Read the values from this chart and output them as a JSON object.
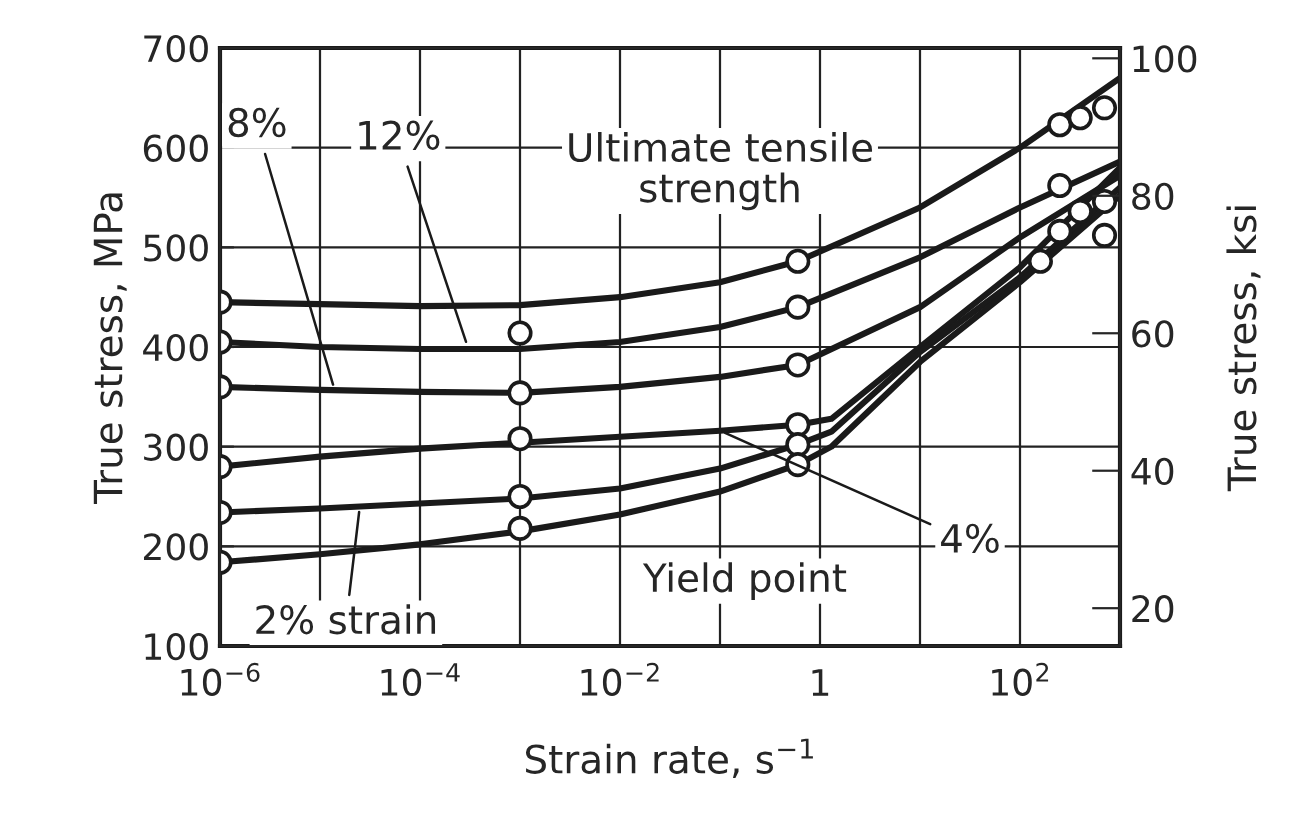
{
  "chart_data": {
    "type": "line",
    "xlabel": "Strain rate, s$^{−1}$",
    "ylabel": "True stress, MPa",
    "y2label": "True stress, ksi",
    "log": "x",
    "xlim": [
      1e-06,
      1000
    ],
    "xticks": [
      {
        "value": 1e-06,
        "label": "10$^{−6}$"
      },
      {
        "value": 1e-05,
        "label": null
      },
      {
        "value": 0.0001,
        "label": "10$^{−4}$"
      },
      {
        "value": 0.001,
        "label": null
      },
      {
        "value": 0.01,
        "label": "10$^{−2}$"
      },
      {
        "value": 0.1,
        "label": null
      },
      {
        "value": 1,
        "label": "1"
      },
      {
        "value": 10,
        "label": null
      },
      {
        "value": 100,
        "label": "10$^{2}$"
      }
    ],
    "ylim": [
      100,
      700
    ],
    "yticks": [
      100,
      200,
      300,
      400,
      500,
      600,
      700
    ],
    "y2lim": [
      14.5,
      101.5
    ],
    "y2ticks": [
      20,
      40,
      60,
      80,
      100
    ],
    "grid": true,
    "marker": "none",
    "line_style": "solid",
    "series": [
      {
        "color": "#1a1a1a",
        "x": [
          1e-06,
          1e-05,
          0.0001,
          0.001,
          0.01,
          0.1,
          0.6,
          10,
          100,
          1000
        ],
        "values": [
          445,
          443,
          441,
          442,
          450,
          465,
          486,
          540,
          600,
          670
        ]
      },
      {
        "color": "#1a1a1a",
        "x": [
          1e-06,
          1e-05,
          0.0001,
          0.001,
          0.01,
          0.1,
          0.6,
          10,
          100,
          1000
        ],
        "values": [
          405,
          400,
          398,
          398,
          405,
          420,
          440,
          490,
          540,
          586
        ]
      },
      {
        "color": "#1a1a1a",
        "x": [
          1e-06,
          1e-05,
          0.0001,
          0.001,
          0.01,
          0.1,
          0.6,
          10,
          100,
          1000
        ],
        "values": [
          360,
          357,
          355,
          354,
          360,
          370,
          382,
          440,
          510,
          572
        ]
      },
      {
        "color": "#1a1a1a",
        "x": [
          1e-06,
          1e-05,
          0.0001,
          0.001,
          0.01,
          0.1,
          0.6,
          1.3,
          10,
          100,
          1000
        ],
        "values": [
          280,
          290,
          298,
          304,
          310,
          316,
          322,
          328,
          400,
          480,
          580
        ]
      },
      {
        "color": "#1a1a1a",
        "x": [
          1e-06,
          1e-05,
          0.0001,
          0.001,
          0.01,
          0.1,
          0.6,
          1.3,
          10,
          100,
          1000
        ],
        "values": [
          234,
          238,
          243,
          248,
          258,
          278,
          302,
          315,
          395,
          470,
          560
        ]
      },
      {
        "color": "#1a1a1a",
        "x": [
          1e-06,
          1e-05,
          0.0001,
          0.001,
          0.01,
          0.1,
          0.6,
          1.3,
          10,
          100,
          1000
        ],
        "values": [
          184,
          192,
          202,
          215,
          232,
          255,
          282,
          300,
          385,
          465,
          552
        ]
      },
      {
        "type": "scatter",
        "color": "#1a1a1a",
        "marker": "circle",
        "x": [
          1e-06,
          1e-06,
          1e-06,
          1e-06,
          1e-06,
          1e-06,
          0.001,
          0.001,
          0.001,
          0.001,
          0.001,
          0.6,
          0.6,
          0.6,
          0.6,
          0.6,
          0.6,
          250,
          400,
          700,
          250,
          400,
          700,
          250,
          700,
          160
        ],
        "values": [
          445,
          405,
          360,
          280,
          234,
          184,
          414,
          354,
          308,
          250,
          218,
          486,
          440,
          382,
          322,
          302,
          282,
          623,
          630,
          640,
          562,
          536,
          546,
          516,
          512,
          486
        ]
      }
    ],
    "annotations": [
      {
        "text": "Ultimate tensile\nstrength",
        "x": 0.1,
        "y": 465
      },
      {
        "text": "12%",
        "x": 0.0003,
        "y": 400
      },
      {
        "text": "8%",
        "x": 1.4e-05,
        "y": 357
      },
      {
        "text": "4%",
        "x": 0.1,
        "y": 316
      },
      {
        "text": "2% strain",
        "x": 2.5e-05,
        "y": 240
      },
      {
        "text": "Yield point",
        "x": 0.01,
        "y": 232
      }
    ]
  }
}
